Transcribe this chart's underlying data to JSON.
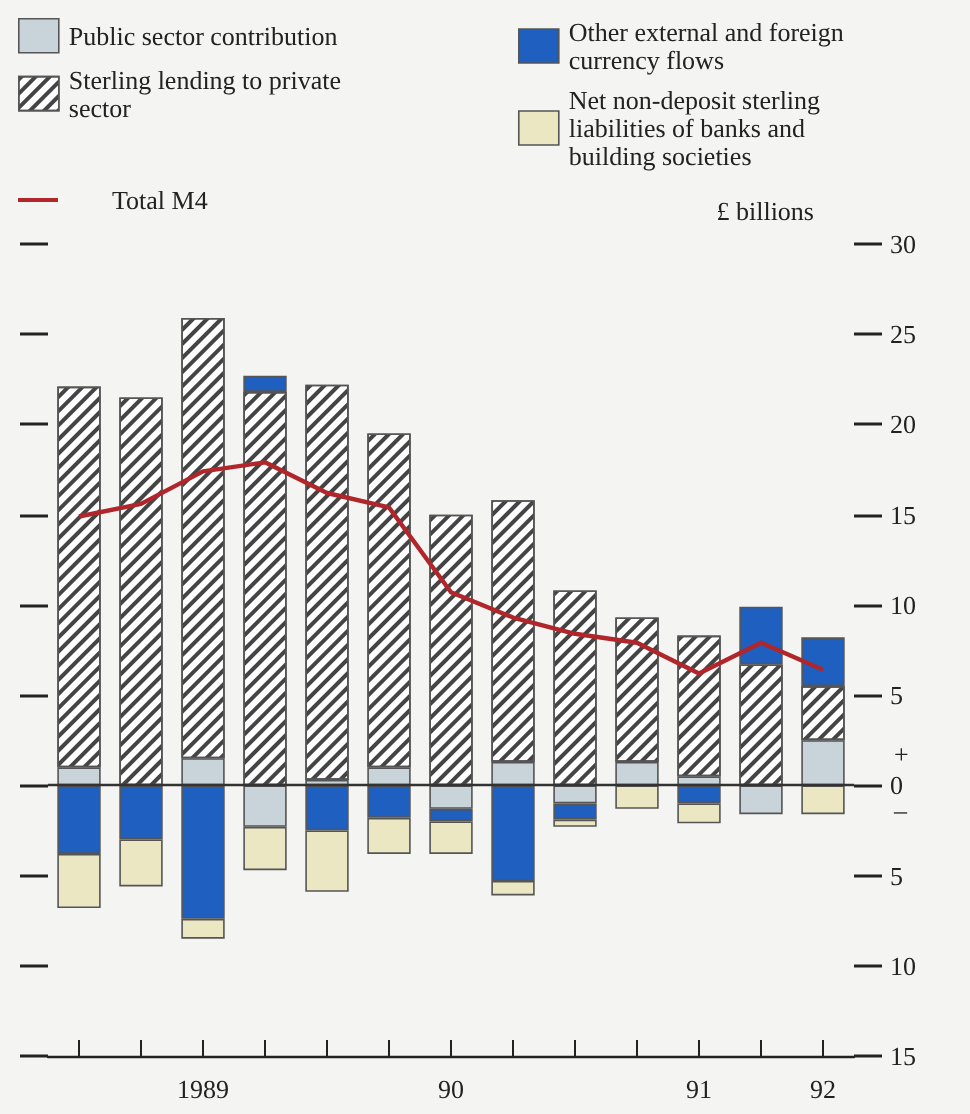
{
  "chart_data": {
    "type": "bar",
    "stacked": true,
    "ylabel": "£ billions",
    "categories": [
      null,
      null,
      "1989",
      null,
      null,
      null,
      "90",
      null,
      null,
      null,
      "91",
      null,
      "92"
    ],
    "series": [
      {
        "name": "Public sector contribution",
        "color": "#c9d4da",
        "values": [
          1.0,
          null,
          1.5,
          -2.3,
          0.3,
          1.0,
          -1.3,
          1.3,
          -1.0,
          1.3,
          0.5,
          -1.6,
          2.5
        ]
      },
      {
        "name": "Sterling lending to private sector",
        "color": "#ffffff",
        "values": [
          21.1,
          21.5,
          24.4,
          21.8,
          21.9,
          18.5,
          15.0,
          14.5,
          10.8,
          8.0,
          7.8,
          6.7,
          3.0
        ]
      },
      {
        "name": "Other external and foreign currency flows",
        "color": "#1f5fbf",
        "values": [
          -3.8,
          -3.0,
          -7.4,
          0.9,
          -2.5,
          -1.8,
          -0.7,
          -5.3,
          -0.9,
          null,
          -1.0,
          3.2,
          2.7
        ]
      },
      {
        "name": "Net non-deposit sterling liabilities of banks and building societies",
        "color": "#ebe7c3",
        "values": [
          -3.0,
          -2.6,
          -1.1,
          -2.4,
          -3.4,
          -2.0,
          -1.8,
          -0.8,
          -0.4,
          -1.3,
          -1.1,
          null,
          -1.6
        ]
      },
      {
        "name": "Total M4",
        "type": "line",
        "color": "#b0262a",
        "values": [
          14.9,
          15.6,
          17.4,
          17.9,
          16.2,
          15.4,
          10.7,
          9.3,
          8.4,
          7.9,
          6.2,
          7.9,
          6.4
        ]
      }
    ],
    "ylim": [
      -15,
      30
    ],
    "yticks": [
      {
        "value": -15,
        "label": "15"
      },
      {
        "value": -10,
        "label": "10"
      },
      {
        "value": -5,
        "label": "5"
      },
      0,
      5,
      10,
      15,
      20,
      25,
      30
    ],
    "ref_lines": [
      {
        "axis": "y",
        "value": 0,
        "color": "#333333"
      }
    ],
    "annotations": [
      "+",
      "–"
    ],
    "marker": "none",
    "line_style": "solid",
    "grid": false,
    "legend": "top"
  }
}
